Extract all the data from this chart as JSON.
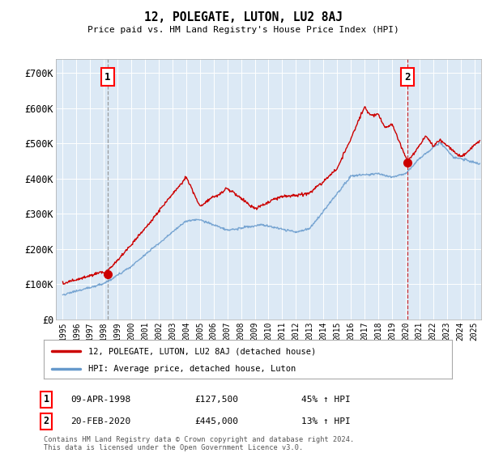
{
  "title": "12, POLEGATE, LUTON, LU2 8AJ",
  "subtitle": "Price paid vs. HM Land Registry's House Price Index (HPI)",
  "ylabel_ticks": [
    "£0",
    "£100K",
    "£200K",
    "£300K",
    "£400K",
    "£500K",
    "£600K",
    "£700K"
  ],
  "ytick_values": [
    0,
    100000,
    200000,
    300000,
    400000,
    500000,
    600000,
    700000
  ],
  "ylim": [
    0,
    740000
  ],
  "xlim_start": 1994.5,
  "xlim_end": 2025.5,
  "sale1_date": 1998.27,
  "sale1_price": 127500,
  "sale2_date": 2020.13,
  "sale2_price": 445000,
  "sale1_label": "1",
  "sale2_label": "2",
  "legend_line1": "12, POLEGATE, LUTON, LU2 8AJ (detached house)",
  "legend_line2": "HPI: Average price, detached house, Luton",
  "footer": "Contains HM Land Registry data © Crown copyright and database right 2024.\nThis data is licensed under the Open Government Licence v3.0.",
  "red_color": "#cc0000",
  "blue_color": "#6699cc",
  "plot_bg_color": "#dce9f5",
  "bg_color": "#ffffff",
  "grid_color": "#ffffff"
}
